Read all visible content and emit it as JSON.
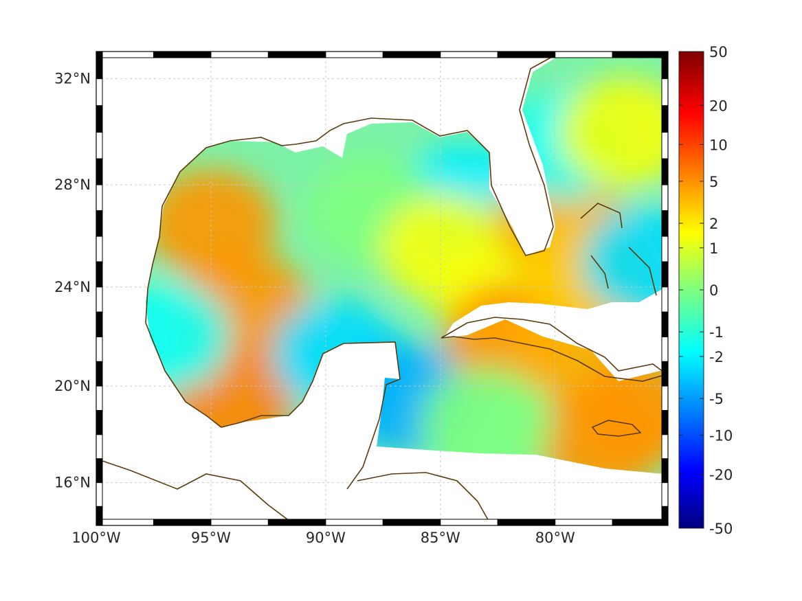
{
  "map": {
    "projection": "mercator",
    "lon_range": [
      -100,
      -75.08
    ],
    "lat_range": [
      14.2,
      33.0
    ],
    "grid": true,
    "coastline_color": "#5a3a0a",
    "land_color": "#ffffff",
    "lat_ticks": [
      {
        "value": 16,
        "label": "16°N"
      },
      {
        "value": 20,
        "label": "20°N"
      },
      {
        "value": 24,
        "label": "24°N"
      },
      {
        "value": 28,
        "label": "28°N"
      },
      {
        "value": 32,
        "label": "32°N"
      }
    ],
    "lon_ticks": [
      {
        "value": -100,
        "label": "100°W"
      },
      {
        "value": -95,
        "label": "95°W"
      },
      {
        "value": -90,
        "label": "90°W"
      },
      {
        "value": -85,
        "label": "85°W"
      },
      {
        "value": -80,
        "label": "80°W"
      }
    ]
  },
  "colorbar": {
    "colormap": "jet",
    "scale": "symmetric-log",
    "ticks": [
      "50",
      "20",
      "10",
      "5",
      "2",
      "1",
      "0",
      "-1",
      "-2",
      "-5",
      "-10",
      "-20",
      "-50"
    ]
  },
  "chart_data": {
    "type": "heatmap",
    "x_range": [
      -100,
      -75.08
    ],
    "y_range": [
      14.2,
      33.0
    ],
    "regions": [
      {
        "lon": -95.0,
        "lat": 26.5,
        "value": 5
      },
      {
        "lon": -93.5,
        "lat": 23.2,
        "value": 5
      },
      {
        "lon": -94.2,
        "lat": 19.5,
        "value": 6
      },
      {
        "lon": -97.0,
        "lat": 22.0,
        "value": -1.5
      },
      {
        "lon": -89.5,
        "lat": 21.3,
        "value": -2.5
      },
      {
        "lon": -86.5,
        "lat": 19.5,
        "value": -4
      },
      {
        "lon": -84.0,
        "lat": 27.5,
        "value": -2
      },
      {
        "lon": -88.0,
        "lat": 27.0,
        "value": 0
      },
      {
        "lon": -84.8,
        "lat": 25.5,
        "value": 1.5
      },
      {
        "lon": -82.5,
        "lat": 23.8,
        "value": 1.5
      },
      {
        "lon": -82.0,
        "lat": 22.0,
        "value": 5
      },
      {
        "lon": -79.0,
        "lat": 21.5,
        "value": 4
      },
      {
        "lon": -78.0,
        "lat": 17.8,
        "value": 5
      },
      {
        "lon": -76.3,
        "lat": 19.0,
        "value": 5
      },
      {
        "lon": -79.8,
        "lat": 26.5,
        "value": 4
      },
      {
        "lon": -78.5,
        "lat": 24.5,
        "value": 3
      },
      {
        "lon": -79.5,
        "lat": 29.5,
        "value": -1.5
      },
      {
        "lon": -77.0,
        "lat": 30.0,
        "value": 1.5
      },
      {
        "lon": -76.0,
        "lat": 25.0,
        "value": -2.5
      },
      {
        "lon": -83.0,
        "lat": 18.5,
        "value": 0
      }
    ]
  }
}
